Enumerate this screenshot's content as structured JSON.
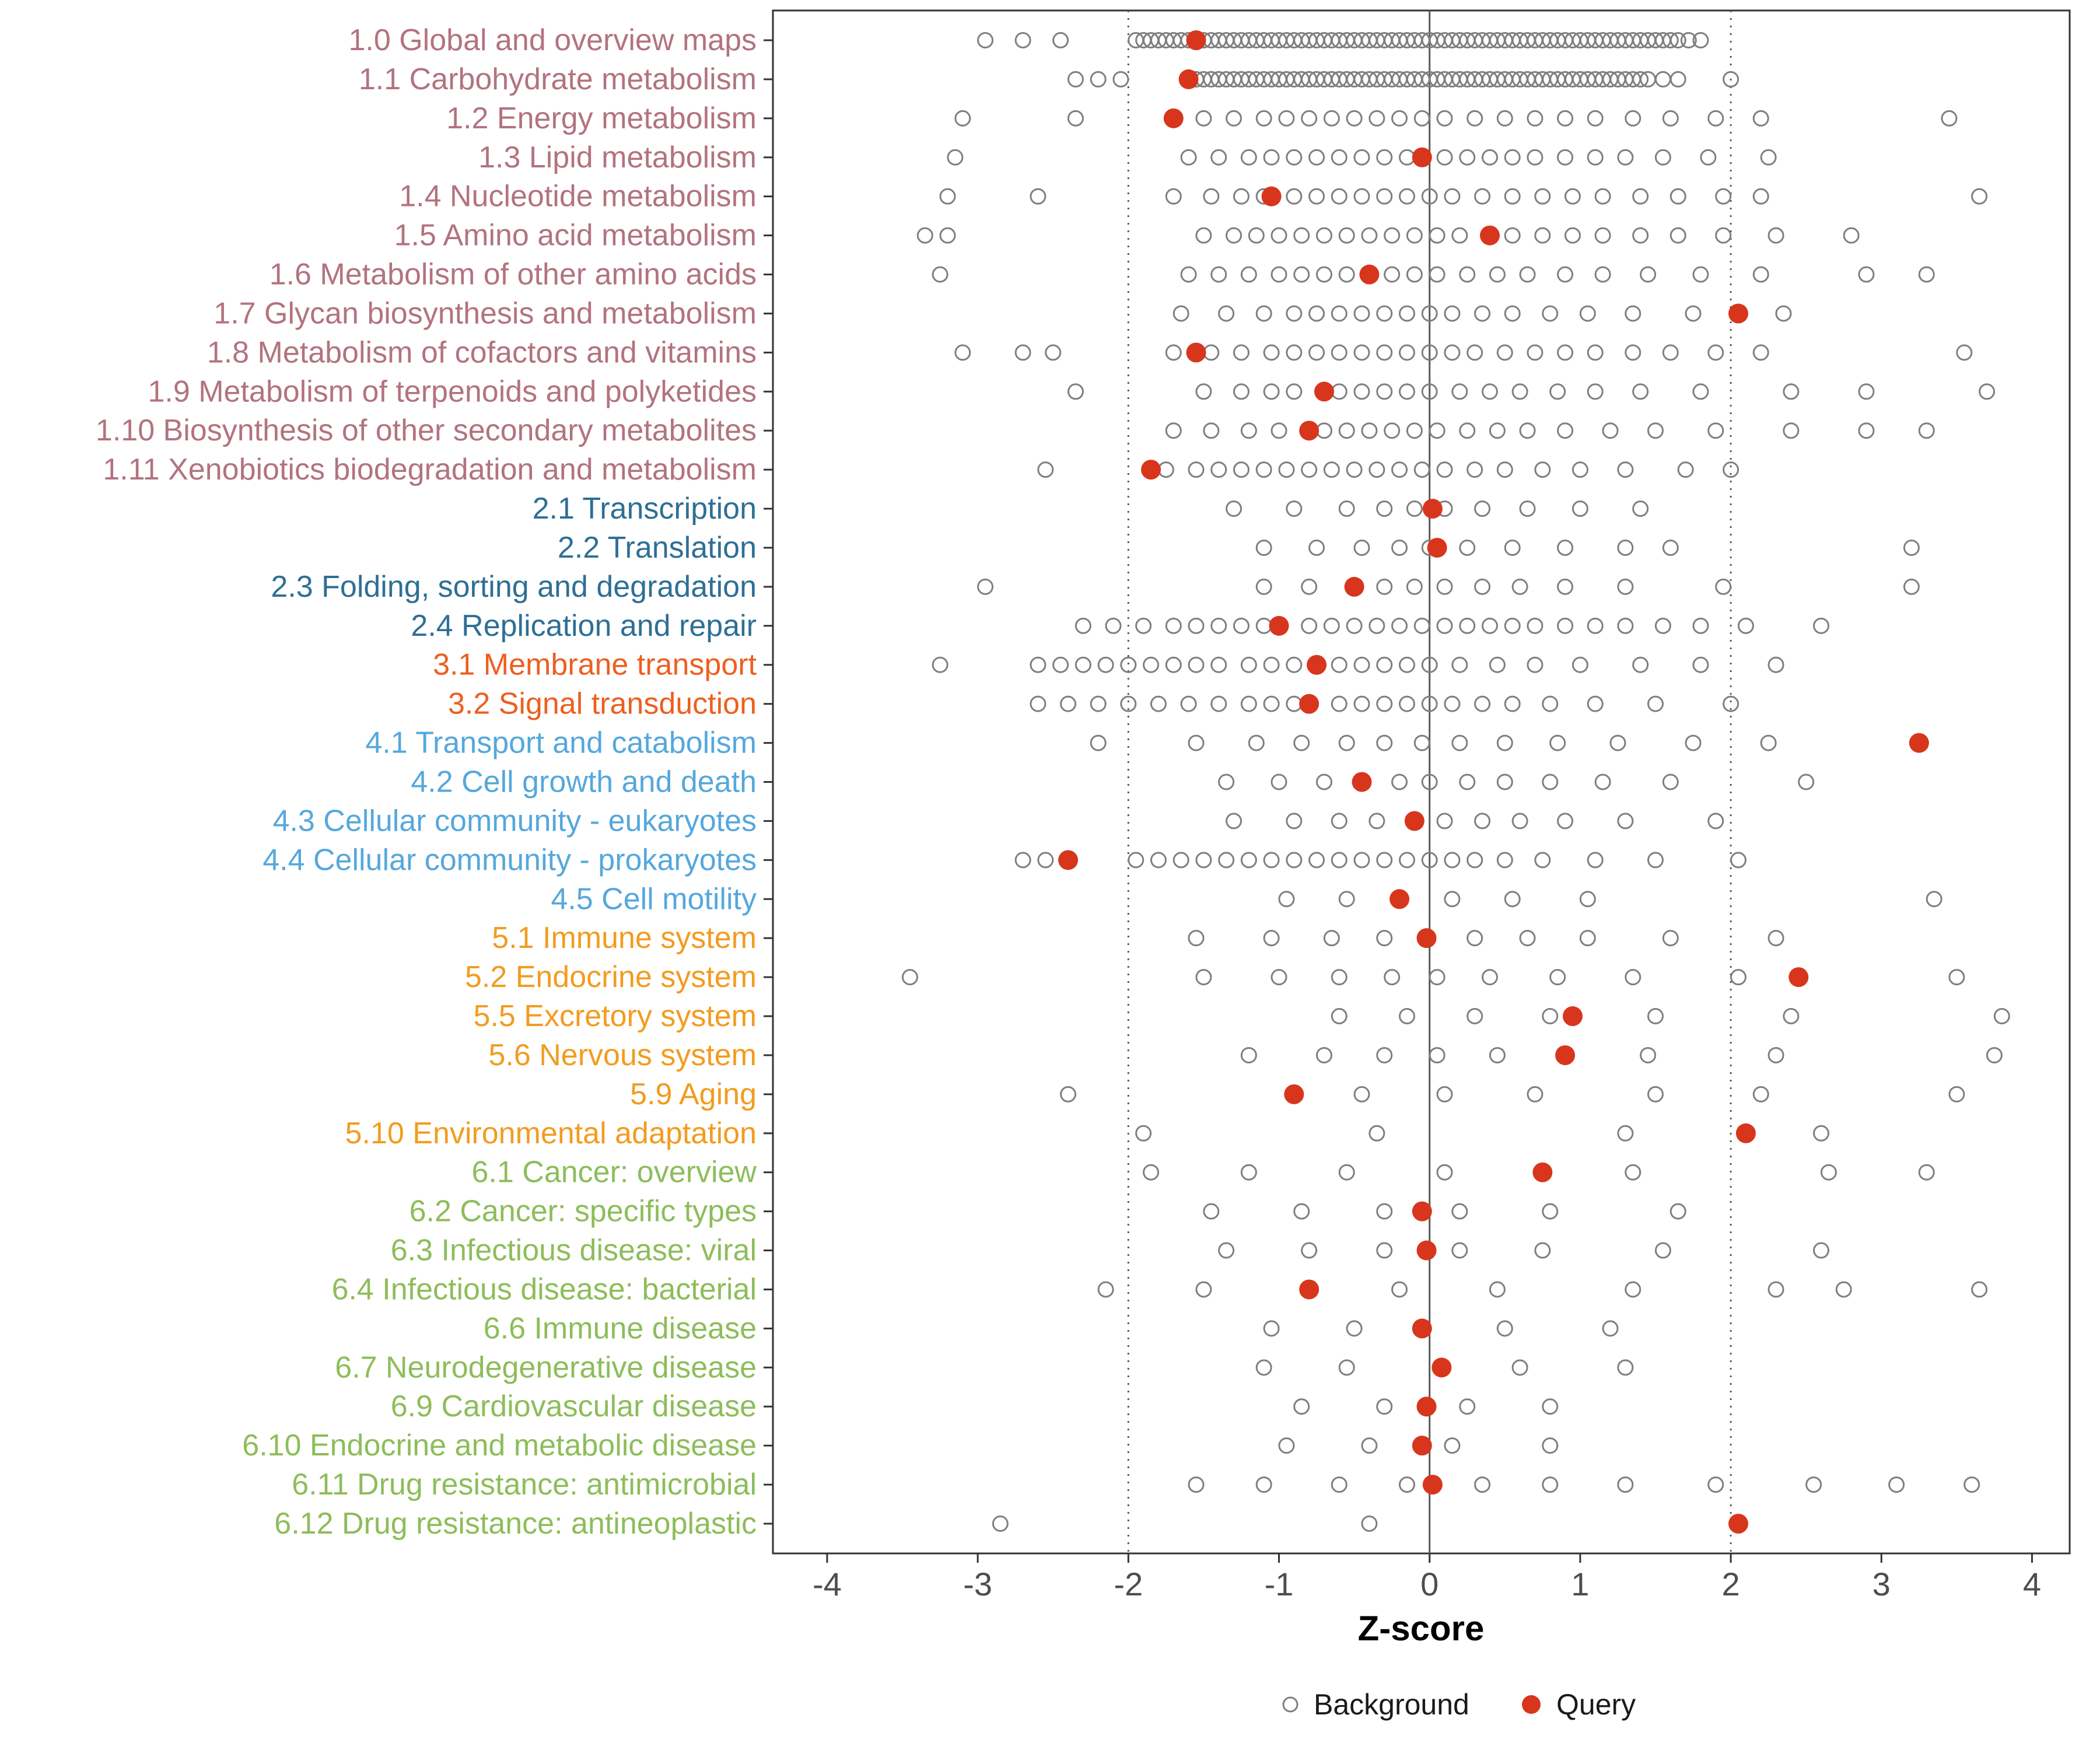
{
  "chart_data": {
    "type": "scatter",
    "title": "",
    "xlabel": "Z-score",
    "ylabel": "",
    "xlim": [
      -4.36,
      4.25
    ],
    "xticks": [
      -4,
      -3,
      -2,
      -1,
      0,
      1,
      2,
      3,
      4
    ],
    "grid": false,
    "legend_position": "bottom",
    "legend": {
      "background": "Background",
      "query": "Query"
    },
    "reference_lines": {
      "solid": [
        0
      ],
      "dotted": [
        -2,
        2
      ]
    },
    "colors": {
      "query": "#d7361d",
      "background": "#7f7f7f",
      "axis_text": "#4d4d4d",
      "groups": {
        "1": "#b2737f",
        "2": "#2e6f95",
        "3": "#ed5f21",
        "4": "#55a8dc",
        "5": "#f29c20",
        "6": "#8dbd5a"
      }
    },
    "rows": [
      {
        "label": "1.0 Global and overview maps",
        "group": "1",
        "query": -1.55,
        "background": [
          -2.95,
          -2.7,
          -2.45,
          -1.95,
          -1.9,
          -1.85,
          -1.8,
          -1.75,
          -1.7,
          -1.65,
          -1.6,
          -1.55,
          -1.5,
          -1.45,
          -1.4,
          -1.35,
          -1.3,
          -1.25,
          -1.2,
          -1.15,
          -1.1,
          -1.05,
          -1,
          -0.95,
          -0.9,
          -0.85,
          -0.8,
          -0.75,
          -0.7,
          -0.65,
          -0.6,
          -0.55,
          -0.5,
          -0.45,
          -0.4,
          -0.35,
          -0.3,
          -0.25,
          -0.2,
          -0.15,
          -0.1,
          -0.05,
          0,
          0.05,
          0.1,
          0.15,
          0.2,
          0.25,
          0.3,
          0.35,
          0.4,
          0.45,
          0.5,
          0.55,
          0.6,
          0.65,
          0.7,
          0.75,
          0.8,
          0.85,
          0.9,
          0.95,
          1,
          1.05,
          1.1,
          1.15,
          1.2,
          1.25,
          1.3,
          1.35,
          1.4,
          1.45,
          1.5,
          1.55,
          1.6,
          1.65,
          1.72,
          1.8
        ]
      },
      {
        "label": "1.1 Carbohydrate metabolism",
        "group": "1",
        "query": -1.6,
        "background": [
          -2.35,
          -2.2,
          -2.05,
          -1.6,
          -1.55,
          -1.5,
          -1.45,
          -1.4,
          -1.35,
          -1.3,
          -1.25,
          -1.2,
          -1.15,
          -1.1,
          -1.05,
          -1,
          -0.95,
          -0.9,
          -0.85,
          -0.8,
          -0.75,
          -0.7,
          -0.65,
          -0.6,
          -0.55,
          -0.5,
          -0.45,
          -0.4,
          -0.35,
          -0.3,
          -0.25,
          -0.2,
          -0.15,
          -0.1,
          -0.05,
          0,
          0.05,
          0.1,
          0.15,
          0.2,
          0.25,
          0.3,
          0.35,
          0.4,
          0.45,
          0.5,
          0.55,
          0.6,
          0.65,
          0.7,
          0.75,
          0.8,
          0.85,
          0.9,
          0.95,
          1,
          1.05,
          1.1,
          1.15,
          1.2,
          1.25,
          1.3,
          1.35,
          1.4,
          1.45,
          1.55,
          1.65,
          2
        ]
      },
      {
        "label": "1.2 Energy metabolism",
        "group": "1",
        "query": -1.7,
        "background": [
          -3.1,
          -2.35,
          -1.5,
          -1.3,
          -1.1,
          -0.95,
          -0.8,
          -0.65,
          -0.5,
          -0.35,
          -0.2,
          -0.05,
          0.1,
          0.3,
          0.5,
          0.7,
          0.9,
          1.1,
          1.35,
          1.6,
          1.9,
          2.2,
          3.45
        ]
      },
      {
        "label": "1.3 Lipid metabolism",
        "group": "1",
        "query": -0.05,
        "background": [
          -3.15,
          -1.6,
          -1.4,
          -1.2,
          -1.05,
          -0.9,
          -0.75,
          -0.6,
          -0.45,
          -0.3,
          -0.15,
          0.1,
          0.25,
          0.4,
          0.55,
          0.7,
          0.9,
          1.1,
          1.3,
          1.55,
          1.85,
          2.25
        ]
      },
      {
        "label": "1.4 Nucleotide metabolism",
        "group": "1",
        "query": -1.05,
        "background": [
          -3.2,
          -2.6,
          -1.7,
          -1.45,
          -1.25,
          -1.1,
          -0.9,
          -0.75,
          -0.6,
          -0.45,
          -0.3,
          -0.15,
          0,
          0.15,
          0.35,
          0.55,
          0.75,
          0.95,
          1.15,
          1.4,
          1.65,
          1.95,
          2.2,
          3.65
        ]
      },
      {
        "label": "1.5 Amino acid metabolism",
        "group": "1",
        "query": 0.4,
        "background": [
          -3.35,
          -3.2,
          -1.5,
          -1.3,
          -1.15,
          -1,
          -0.85,
          -0.7,
          -0.55,
          -0.4,
          -0.25,
          -0.1,
          0.05,
          0.2,
          0.55,
          0.75,
          0.95,
          1.15,
          1.4,
          1.65,
          1.95,
          2.3,
          2.8
        ]
      },
      {
        "label": "1.6 Metabolism of other amino acids",
        "group": "1",
        "query": -0.4,
        "background": [
          -3.25,
          -1.6,
          -1.4,
          -1.2,
          -1,
          -0.85,
          -0.7,
          -0.55,
          -0.25,
          -0.1,
          0.05,
          0.25,
          0.45,
          0.65,
          0.9,
          1.15,
          1.45,
          1.8,
          2.2,
          2.9,
          3.3
        ]
      },
      {
        "label": "1.7 Glycan biosynthesis and metabolism",
        "group": "1",
        "query": 2.05,
        "background": [
          -1.65,
          -1.35,
          -1.1,
          -0.9,
          -0.75,
          -0.6,
          -0.45,
          -0.3,
          -0.15,
          0,
          0.15,
          0.35,
          0.55,
          0.8,
          1.05,
          1.35,
          1.75,
          2.35
        ]
      },
      {
        "label": "1.8 Metabolism of cofactors and vitamins",
        "group": "1",
        "query": -1.55,
        "background": [
          -3.1,
          -2.7,
          -2.5,
          -1.7,
          -1.45,
          -1.25,
          -1.05,
          -0.9,
          -0.75,
          -0.6,
          -0.45,
          -0.3,
          -0.15,
          0,
          0.15,
          0.3,
          0.5,
          0.7,
          0.9,
          1.1,
          1.35,
          1.6,
          1.9,
          2.2,
          3.55
        ]
      },
      {
        "label": "1.9 Metabolism of terpenoids and polyketides",
        "group": "1",
        "query": -0.7,
        "background": [
          -2.35,
          -1.5,
          -1.25,
          -1.05,
          -0.9,
          -0.6,
          -0.45,
          -0.3,
          -0.15,
          0,
          0.2,
          0.4,
          0.6,
          0.85,
          1.1,
          1.4,
          1.8,
          2.4,
          2.9,
          3.7
        ]
      },
      {
        "label": "1.10 Biosynthesis of other secondary metabolites",
        "group": "1",
        "query": -0.8,
        "background": [
          -1.7,
          -1.45,
          -1.2,
          -1,
          -0.7,
          -0.55,
          -0.4,
          -0.25,
          -0.1,
          0.05,
          0.25,
          0.45,
          0.65,
          0.9,
          1.2,
          1.5,
          1.9,
          2.4,
          2.9,
          3.3
        ]
      },
      {
        "label": "1.11 Xenobiotics biodegradation and metabolism",
        "group": "1",
        "query": -1.85,
        "background": [
          -2.55,
          -1.75,
          -1.55,
          -1.4,
          -1.25,
          -1.1,
          -0.95,
          -0.8,
          -0.65,
          -0.5,
          -0.35,
          -0.2,
          -0.05,
          0.1,
          0.3,
          0.5,
          0.75,
          1,
          1.3,
          1.7,
          2
        ]
      },
      {
        "label": "2.1 Transcription",
        "group": "2",
        "query": 0.02,
        "background": [
          -1.3,
          -0.9,
          -0.55,
          -0.3,
          -0.1,
          0.1,
          0.35,
          0.65,
          1,
          1.4
        ]
      },
      {
        "label": "2.2 Translation",
        "group": "2",
        "query": 0.05,
        "background": [
          -1.1,
          -0.75,
          -0.45,
          -0.2,
          0,
          0.25,
          0.55,
          0.9,
          1.3,
          1.6,
          3.2
        ]
      },
      {
        "label": "2.3 Folding, sorting and degradation",
        "group": "2",
        "query": -0.5,
        "background": [
          -2.95,
          -1.1,
          -0.8,
          -0.3,
          -0.1,
          0.1,
          0.35,
          0.6,
          0.9,
          1.3,
          1.95,
          3.2
        ]
      },
      {
        "label": "2.4 Replication and repair",
        "group": "2",
        "query": -1.0,
        "background": [
          -2.3,
          -2.1,
          -1.9,
          -1.7,
          -1.55,
          -1.4,
          -1.25,
          -1.1,
          -0.8,
          -0.65,
          -0.5,
          -0.35,
          -0.2,
          -0.05,
          0.1,
          0.25,
          0.4,
          0.55,
          0.7,
          0.9,
          1.1,
          1.3,
          1.55,
          1.8,
          2.1,
          2.6
        ]
      },
      {
        "label": "3.1 Membrane transport",
        "group": "3",
        "query": -0.75,
        "background": [
          -3.25,
          -2.6,
          -2.45,
          -2.3,
          -2.15,
          -2,
          -1.85,
          -1.7,
          -1.55,
          -1.4,
          -1.2,
          -1.05,
          -0.9,
          -0.6,
          -0.45,
          -0.3,
          -0.15,
          0,
          0.2,
          0.45,
          0.7,
          1,
          1.4,
          1.8,
          2.3
        ]
      },
      {
        "label": "3.2 Signal transduction",
        "group": "3",
        "query": -0.8,
        "background": [
          -2.6,
          -2.4,
          -2.2,
          -2,
          -1.8,
          -1.6,
          -1.4,
          -1.2,
          -1.05,
          -0.9,
          -0.6,
          -0.45,
          -0.3,
          -0.15,
          0,
          0.15,
          0.35,
          0.55,
          0.8,
          1.1,
          1.5,
          2
        ]
      },
      {
        "label": "4.1 Transport and catabolism",
        "group": "4",
        "query": 3.25,
        "background": [
          -2.2,
          -1.55,
          -1.15,
          -0.85,
          -0.55,
          -0.3,
          -0.05,
          0.2,
          0.5,
          0.85,
          1.25,
          1.75,
          2.25
        ]
      },
      {
        "label": "4.2 Cell growth and death",
        "group": "4",
        "query": -0.45,
        "background": [
          -1.35,
          -1,
          -0.7,
          -0.2,
          0,
          0.25,
          0.5,
          0.8,
          1.15,
          1.6,
          2.5
        ]
      },
      {
        "label": "4.3 Cellular community - eukaryotes",
        "group": "4",
        "query": -0.1,
        "background": [
          -1.3,
          -0.9,
          -0.6,
          -0.35,
          0.1,
          0.35,
          0.6,
          0.9,
          1.3,
          1.9
        ]
      },
      {
        "label": "4.4 Cellular community - prokaryotes",
        "group": "4",
        "query": -2.4,
        "background": [
          -2.7,
          -2.55,
          -1.95,
          -1.8,
          -1.65,
          -1.5,
          -1.35,
          -1.2,
          -1.05,
          -0.9,
          -0.75,
          -0.6,
          -0.45,
          -0.3,
          -0.15,
          0,
          0.15,
          0.3,
          0.5,
          0.75,
          1.1,
          1.5,
          2.05
        ]
      },
      {
        "label": "4.5 Cell motility",
        "group": "4",
        "query": -0.2,
        "background": [
          -0.95,
          -0.55,
          0.15,
          0.55,
          1.05,
          3.35
        ]
      },
      {
        "label": "5.1 Immune system",
        "group": "5",
        "query": -0.02,
        "background": [
          -1.55,
          -1.05,
          -0.65,
          -0.3,
          0.3,
          0.65,
          1.05,
          1.6,
          2.3
        ]
      },
      {
        "label": "5.2 Endocrine system",
        "group": "5",
        "query": 2.45,
        "background": [
          -3.45,
          -1.5,
          -1,
          -0.6,
          -0.25,
          0.05,
          0.4,
          0.85,
          1.35,
          2.05,
          3.5
        ]
      },
      {
        "label": "5.5 Excretory system",
        "group": "5",
        "query": 0.95,
        "background": [
          -0.6,
          -0.15,
          0.3,
          0.8,
          1.5,
          2.4,
          3.8
        ]
      },
      {
        "label": "5.6 Nervous system",
        "group": "5",
        "query": 0.9,
        "background": [
          -1.2,
          -0.7,
          -0.3,
          0.05,
          0.45,
          1.45,
          2.3,
          3.75
        ]
      },
      {
        "label": "5.9 Aging",
        "group": "5",
        "query": -0.9,
        "background": [
          -2.4,
          -0.45,
          0.1,
          0.7,
          1.5,
          2.2,
          3.5
        ]
      },
      {
        "label": "5.10 Environmental adaptation",
        "group": "5",
        "query": 2.1,
        "background": [
          -1.9,
          -0.35,
          1.3,
          2.6
        ]
      },
      {
        "label": "6.1 Cancer: overview",
        "group": "6",
        "query": 0.75,
        "background": [
          -1.85,
          -1.2,
          -0.55,
          0.1,
          1.35,
          2.65,
          3.3
        ]
      },
      {
        "label": "6.2 Cancer: specific types",
        "group": "6",
        "query": -0.05,
        "background": [
          -1.45,
          -0.85,
          -0.3,
          0.2,
          0.8,
          1.65
        ]
      },
      {
        "label": "6.3 Infectious disease: viral",
        "group": "6",
        "query": -0.02,
        "background": [
          -1.35,
          -0.8,
          -0.3,
          0.2,
          0.75,
          1.55,
          2.6
        ]
      },
      {
        "label": "6.4 Infectious disease: bacterial",
        "group": "6",
        "query": -0.8,
        "background": [
          -2.15,
          -1.5,
          -0.2,
          0.45,
          1.35,
          2.3,
          2.75,
          3.65
        ]
      },
      {
        "label": "6.6 Immune disease",
        "group": "6",
        "query": -0.05,
        "background": [
          -1.05,
          -0.5,
          0.5,
          1.2
        ]
      },
      {
        "label": "6.7 Neurodegenerative disease",
        "group": "6",
        "query": 0.08,
        "background": [
          -1.1,
          -0.55,
          0.6,
          1.3
        ]
      },
      {
        "label": "6.9 Cardiovascular disease",
        "group": "6",
        "query": -0.02,
        "background": [
          -0.85,
          -0.3,
          0.25,
          0.8
        ]
      },
      {
        "label": "6.10 Endocrine and metabolic disease",
        "group": "6",
        "query": -0.05,
        "background": [
          -0.95,
          -0.4,
          0.15,
          0.8
        ]
      },
      {
        "label": "6.11 Drug resistance: antimicrobial",
        "group": "6",
        "query": 0.02,
        "background": [
          -1.55,
          -1.1,
          -0.6,
          -0.15,
          0.35,
          0.8,
          1.3,
          1.9,
          2.55,
          3.1,
          3.6
        ]
      },
      {
        "label": "6.12 Drug resistance: antineoplastic",
        "group": "6",
        "query": 2.05,
        "background": [
          -2.85,
          -0.4
        ]
      }
    ]
  }
}
